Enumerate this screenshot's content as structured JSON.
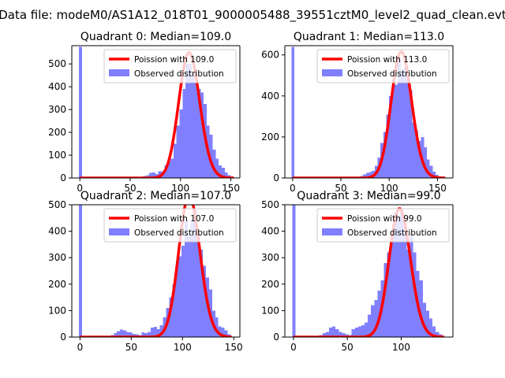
{
  "figure_title": "Data file: modeM0/AS1A12_018T01_9000005488_39551cztM0_level2_quad_clean.evt",
  "colors": {
    "poisson": "#ff0000",
    "observed": "#8080ff",
    "axis": "#000000",
    "background": "#ffffff"
  },
  "chart_data": [
    {
      "type": "bar+line",
      "title": "Quadrant 0: Median=109.0",
      "xlim": [
        -8,
        159
      ],
      "ylim": [
        0,
        580
      ],
      "xticks": [
        0,
        50,
        100,
        150
      ],
      "yticks": [
        0,
        100,
        200,
        300,
        400,
        500
      ],
      "bin_width": 3,
      "legend": {
        "placement": "upper-right",
        "entries": [
          "Poission with 109.0",
          "Observed distribution"
        ]
      },
      "poisson_mean": 109.0,
      "poisson_scale": 550,
      "poisson_x_range": [
        0,
        153
      ],
      "observed": {
        "name": "Observed distribution",
        "bins": [
          [
            -1,
            575
          ],
          [
            60,
            5
          ],
          [
            63,
            8
          ],
          [
            66,
            12
          ],
          [
            69,
            22
          ],
          [
            72,
            25
          ],
          [
            75,
            18
          ],
          [
            78,
            30
          ],
          [
            81,
            30
          ],
          [
            84,
            55
          ],
          [
            87,
            70
          ],
          [
            90,
            85
          ],
          [
            93,
            150
          ],
          [
            96,
            230
          ],
          [
            99,
            300
          ],
          [
            102,
            390
          ],
          [
            105,
            500
          ],
          [
            108,
            500
          ],
          [
            111,
            455
          ],
          [
            114,
            420
          ],
          [
            117,
            390
          ],
          [
            120,
            375
          ],
          [
            123,
            325
          ],
          [
            126,
            230
          ],
          [
            129,
            190
          ],
          [
            132,
            125
          ],
          [
            135,
            85
          ],
          [
            138,
            55
          ],
          [
            141,
            45
          ],
          [
            144,
            25
          ],
          [
            147,
            12
          ],
          [
            150,
            5
          ]
        ]
      }
    },
    {
      "type": "bar+line",
      "title": "Quadrant 1: Median=113.0",
      "xlim": [
        -8,
        166
      ],
      "ylim": [
        0,
        645
      ],
      "xticks": [
        0,
        50,
        100,
        150
      ],
      "yticks": [
        0,
        200,
        400,
        600
      ],
      "bin_width": 3,
      "legend": {
        "placement": "upper-right",
        "entries": [
          "Poission with 113.0",
          "Observed distribution"
        ]
      },
      "poisson_mean": 113.0,
      "poisson_scale": 615,
      "poisson_x_range": [
        0,
        158
      ],
      "observed": {
        "name": "Observed distribution",
        "bins": [
          [
            -1,
            640
          ],
          [
            70,
            10
          ],
          [
            73,
            18
          ],
          [
            76,
            25
          ],
          [
            79,
            28
          ],
          [
            82,
            35
          ],
          [
            85,
            60
          ],
          [
            88,
            100
          ],
          [
            91,
            170
          ],
          [
            94,
            225
          ],
          [
            97,
            310
          ],
          [
            100,
            400
          ],
          [
            103,
            480
          ],
          [
            106,
            455
          ],
          [
            109,
            570
          ],
          [
            112,
            520
          ],
          [
            115,
            540
          ],
          [
            118,
            490
          ],
          [
            121,
            430
          ],
          [
            124,
            270
          ],
          [
            127,
            230
          ],
          [
            130,
            180
          ],
          [
            133,
            200
          ],
          [
            136,
            150
          ],
          [
            139,
            90
          ],
          [
            142,
            60
          ],
          [
            145,
            30
          ],
          [
            148,
            15
          ],
          [
            151,
            5
          ]
        ]
      }
    },
    {
      "type": "bar+line",
      "title": "Quadrant 2: Median=107.0",
      "xlim": [
        -8,
        156
      ],
      "ylim": [
        0,
        500
      ],
      "xticks": [
        0,
        50,
        100,
        150
      ],
      "yticks": [
        0,
        100,
        200,
        300,
        400,
        500
      ],
      "bin_width": 3,
      "legend": {
        "placement": "upper-right",
        "entries": [
          "Poission with 107.0",
          "Observed distribution"
        ]
      },
      "poisson_mean": 107.0,
      "poisson_scale": 535,
      "poisson_x_range": [
        0,
        148
      ],
      "observed": {
        "name": "Observed distribution",
        "bins": [
          [
            -1,
            500
          ],
          [
            30,
            8
          ],
          [
            33,
            15
          ],
          [
            36,
            22
          ],
          [
            39,
            28
          ],
          [
            42,
            25
          ],
          [
            45,
            20
          ],
          [
            48,
            18
          ],
          [
            51,
            12
          ],
          [
            54,
            10
          ],
          [
            57,
            8
          ],
          [
            60,
            18
          ],
          [
            63,
            15
          ],
          [
            66,
            20
          ],
          [
            69,
            35
          ],
          [
            72,
            38
          ],
          [
            75,
            30
          ],
          [
            78,
            45
          ],
          [
            81,
            75
          ],
          [
            84,
            110
          ],
          [
            87,
            150
          ],
          [
            90,
            200
          ],
          [
            93,
            265
          ],
          [
            96,
            305
          ],
          [
            99,
            345
          ],
          [
            102,
            440
          ],
          [
            105,
            380
          ],
          [
            108,
            435
          ],
          [
            111,
            480
          ],
          [
            114,
            395
          ],
          [
            117,
            330
          ],
          [
            120,
            270
          ],
          [
            123,
            225
          ],
          [
            126,
            180
          ],
          [
            129,
            100
          ],
          [
            132,
            75
          ],
          [
            135,
            40
          ],
          [
            138,
            35
          ],
          [
            141,
            25
          ],
          [
            144,
            10
          ]
        ]
      }
    },
    {
      "type": "bar+line",
      "title": "Quadrant 3: Median=99.0",
      "xlim": [
        -8,
        148
      ],
      "ylim": [
        0,
        500
      ],
      "xticks": [
        0,
        50,
        100
      ],
      "yticks": [
        0,
        100,
        200,
        300,
        400,
        500
      ],
      "bin_width": 3,
      "legend": {
        "placement": "upper-right",
        "entries": [
          "Poission with 99.0",
          "Observed distribution"
        ]
      },
      "poisson_mean": 99.0,
      "poisson_scale": 485,
      "poisson_x_range": [
        0,
        140
      ],
      "observed": {
        "name": "Observed distribution",
        "bins": [
          [
            -1,
            500
          ],
          [
            24,
            8
          ],
          [
            27,
            15
          ],
          [
            30,
            20
          ],
          [
            33,
            35
          ],
          [
            36,
            40
          ],
          [
            39,
            30
          ],
          [
            42,
            20
          ],
          [
            45,
            15
          ],
          [
            48,
            10
          ],
          [
            51,
            8
          ],
          [
            54,
            30
          ],
          [
            57,
            35
          ],
          [
            60,
            40
          ],
          [
            63,
            45
          ],
          [
            66,
            55
          ],
          [
            69,
            85
          ],
          [
            72,
            120
          ],
          [
            75,
            140
          ],
          [
            78,
            175
          ],
          [
            81,
            215
          ],
          [
            84,
            280
          ],
          [
            87,
            320
          ],
          [
            90,
            390
          ],
          [
            93,
            470
          ],
          [
            96,
            455
          ],
          [
            99,
            480
          ],
          [
            102,
            430
          ],
          [
            105,
            330
          ],
          [
            108,
            390
          ],
          [
            111,
            320
          ],
          [
            114,
            250
          ],
          [
            117,
            215
          ],
          [
            120,
            130
          ],
          [
            123,
            100
          ],
          [
            126,
            70
          ],
          [
            129,
            40
          ],
          [
            132,
            20
          ],
          [
            135,
            10
          ]
        ]
      }
    }
  ]
}
